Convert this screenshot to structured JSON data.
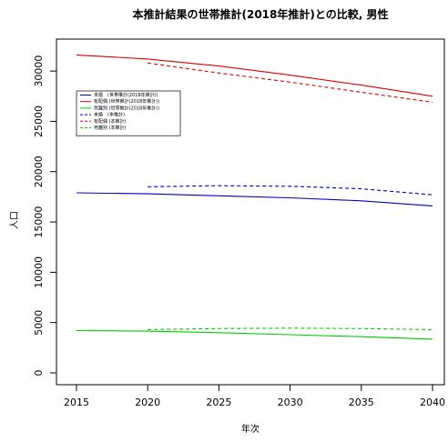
{
  "chart_data": {
    "type": "line",
    "title": "本推計結果の世帯推計(2018年推計)との比較, 男性",
    "xlabel": "年次",
    "ylabel": "人口",
    "xlim": [
      2015,
      2040
    ],
    "ylim": [
      0,
      32000
    ],
    "xticks": [
      2015,
      2020,
      2025,
      2030,
      2035,
      2040
    ],
    "yticks": [
      0,
      5000,
      10000,
      15000,
      20000,
      25000,
      30000
    ],
    "grid": false,
    "legend_position": "top-left",
    "series": [
      {
        "name": "未婚　(世帯推計(2018年推計))",
        "color": "#0000cc",
        "dash": "solid",
        "x": [
          2015,
          2020,
          2025,
          2030,
          2035,
          2040
        ],
        "values": [
          17900,
          17800,
          17600,
          17400,
          17100,
          16600
        ]
      },
      {
        "name": "有配偶 (世帯推計(2018年推計))",
        "color": "#dd0000",
        "dash": "solid",
        "x": [
          2015,
          2020,
          2025,
          2030,
          2035,
          2040
        ],
        "values": [
          31600,
          31200,
          30500,
          29600,
          28600,
          27500
        ]
      },
      {
        "name": "死離別 (世帯推計(2018年推計))",
        "color": "#00cc00",
        "dash": "solid",
        "x": [
          2015,
          2020,
          2025,
          2030,
          2035,
          2040
        ],
        "values": [
          4200,
          4150,
          4000,
          3800,
          3600,
          3350
        ]
      },
      {
        "name": "未婚　(本推計)",
        "color": "#0000cc",
        "dash": "dashed",
        "x": [
          2020,
          2025,
          2030,
          2035,
          2040
        ],
        "values": [
          18500,
          18600,
          18550,
          18300,
          17700
        ]
      },
      {
        "name": "有配偶 (本推計)",
        "color": "#dd0000",
        "dash": "dashed",
        "x": [
          2020,
          2025,
          2030,
          2035,
          2040
        ],
        "values": [
          30800,
          29800,
          28900,
          27900,
          26900
        ]
      },
      {
        "name": "死離別 (本推計)",
        "color": "#00cc00",
        "dash": "dashed",
        "x": [
          2020,
          2025,
          2030,
          2035,
          2040
        ],
        "values": [
          4300,
          4400,
          4450,
          4400,
          4300
        ]
      }
    ]
  }
}
